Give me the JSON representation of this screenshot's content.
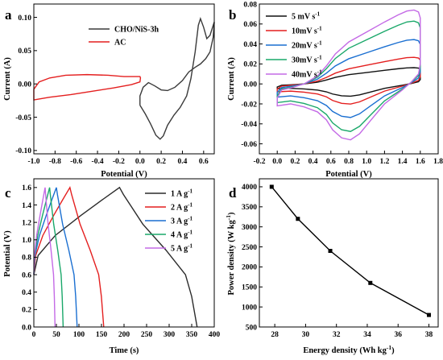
{
  "panels": {
    "a": {
      "label": "a"
    },
    "b": {
      "label": "b"
    },
    "c": {
      "label": "c"
    },
    "d": {
      "label": "d"
    }
  },
  "chart_data": [
    {
      "panel": "a",
      "type": "line",
      "xlabel": "Potential (V)",
      "ylabel": "Current (A)",
      "xlim": [
        -1.0,
        0.7
      ],
      "ylim": [
        -0.105,
        0.12
      ],
      "xticks": [
        -1.0,
        -0.8,
        -0.6,
        -0.4,
        -0.2,
        0.0,
        0.2,
        0.4,
        0.6
      ],
      "xtick_labels": [
        "-1.0",
        "-0.8",
        "-0.6",
        "-0.4",
        "-0.2",
        "0.0",
        "0.2",
        "0.4",
        "0.6"
      ],
      "yticks": [
        -0.1,
        -0.05,
        0.0,
        0.05,
        0.1
      ],
      "ytick_labels": [
        "-0.10",
        "-0.05",
        "0.00",
        "0.05",
        "0.10"
      ],
      "legend_position": "top-center",
      "series": [
        {
          "name": "CHO/NiS-3h",
          "color": "#3a3a3a",
          "points": [
            [
              0.0,
              -0.032
            ],
            [
              0.05,
              -0.045
            ],
            [
              0.1,
              -0.06
            ],
            [
              0.15,
              -0.077
            ],
            [
              0.19,
              -0.083
            ],
            [
              0.22,
              -0.078
            ],
            [
              0.26,
              -0.062
            ],
            [
              0.32,
              -0.047
            ],
            [
              0.38,
              -0.035
            ],
            [
              0.44,
              -0.018
            ],
            [
              0.48,
              0.008
            ],
            [
              0.52,
              0.048
            ],
            [
              0.55,
              0.088
            ],
            [
              0.57,
              0.098
            ],
            [
              0.6,
              0.085
            ],
            [
              0.63,
              0.068
            ],
            [
              0.66,
              0.073
            ],
            [
              0.68,
              0.083
            ],
            [
              0.7,
              0.093
            ],
            [
              0.69,
              0.07
            ],
            [
              0.66,
              0.048
            ],
            [
              0.62,
              0.038
            ],
            [
              0.57,
              0.03
            ],
            [
              0.52,
              0.025
            ],
            [
              0.46,
              0.018
            ],
            [
              0.4,
              0.005
            ],
            [
              0.33,
              -0.005
            ],
            [
              0.26,
              -0.01
            ],
            [
              0.2,
              -0.009
            ],
            [
              0.14,
              -0.003
            ],
            [
              0.08,
              0.002
            ],
            [
              0.03,
              -0.005
            ],
            [
              0.0,
              -0.018
            ],
            [
              0.0,
              -0.032
            ]
          ]
        },
        {
          "name": "AC",
          "color": "#e41f1f",
          "points": [
            [
              -1.0,
              -0.008
            ],
            [
              -0.95,
              0.003
            ],
            [
              -0.85,
              0.009
            ],
            [
              -0.7,
              0.013
            ],
            [
              -0.5,
              0.014
            ],
            [
              -0.3,
              0.013
            ],
            [
              -0.15,
              0.011
            ],
            [
              -0.05,
              0.011
            ],
            [
              0.0,
              0.011
            ],
            [
              0.005,
              0.009
            ],
            [
              0.0,
              0.003
            ],
            [
              -0.08,
              -0.001
            ],
            [
              -0.25,
              -0.006
            ],
            [
              -0.45,
              -0.011
            ],
            [
              -0.65,
              -0.016
            ],
            [
              -0.85,
              -0.02
            ],
            [
              -1.0,
              -0.024
            ],
            [
              -1.0,
              -0.008
            ]
          ]
        }
      ]
    },
    {
      "panel": "b",
      "type": "line",
      "xlabel": "Potential (V)",
      "ylabel": "Current (A)",
      "xlim": [
        -0.2,
        1.8
      ],
      "ylim": [
        -0.07,
        0.08
      ],
      "xticks": [
        -0.2,
        0.0,
        0.2,
        0.4,
        0.6,
        0.8,
        1.0,
        1.2,
        1.4,
        1.6,
        1.8
      ],
      "xtick_labels": [
        "-0.2",
        "0.0",
        "0.2",
        "0.4",
        "0.6",
        "0.8",
        "1.0",
        "1.2",
        "1.4",
        "1.6",
        "1.8"
      ],
      "yticks": [
        -0.06,
        -0.04,
        -0.02,
        0.0,
        0.02,
        0.04,
        0.06,
        0.08
      ],
      "ytick_labels": [
        "-0.06",
        "-0.04",
        "-0.02",
        "0.00",
        "0.02",
        "0.04",
        "0.06",
        "0.08"
      ],
      "legend_position": "top-left",
      "series": [
        {
          "name": "5  mV s",
          "unit_superscript": "-1",
          "color": "#111111",
          "scale": 0.22
        },
        {
          "name": "10mV s",
          "unit_superscript": "-1",
          "color": "#e41f1f",
          "scale": 0.36
        },
        {
          "name": "20mV s",
          "unit_superscript": "-1",
          "color": "#1a6fd1",
          "scale": 0.6
        },
        {
          "name": "30mV s",
          "unit_superscript": "-1",
          "color": "#1aa86a",
          "scale": 0.85
        },
        {
          "name": "40mV s",
          "unit_superscript": "-1",
          "color": "#c46ae6",
          "scale": 1.0
        }
      ],
      "base_loop_40mV": [
        [
          0.0,
          -0.014
        ],
        [
          0.05,
          -0.006
        ],
        [
          0.15,
          -0.004
        ],
        [
          0.3,
          0.0
        ],
        [
          0.45,
          0.008
        ],
        [
          0.55,
          0.018
        ],
        [
          0.65,
          0.03
        ],
        [
          0.8,
          0.042
        ],
        [
          1.0,
          0.052
        ],
        [
          1.2,
          0.062
        ],
        [
          1.35,
          0.069
        ],
        [
          1.45,
          0.073
        ],
        [
          1.53,
          0.074
        ],
        [
          1.58,
          0.072
        ],
        [
          1.6,
          0.066
        ],
        [
          1.6,
          0.02
        ],
        [
          1.58,
          0.01
        ],
        [
          1.5,
          0.002
        ],
        [
          1.4,
          -0.006
        ],
        [
          1.2,
          -0.02
        ],
        [
          1.05,
          -0.036
        ],
        [
          0.92,
          -0.05
        ],
        [
          0.82,
          -0.056
        ],
        [
          0.72,
          -0.054
        ],
        [
          0.62,
          -0.046
        ],
        [
          0.55,
          -0.036
        ],
        [
          0.45,
          -0.028
        ],
        [
          0.3,
          -0.023
        ],
        [
          0.15,
          -0.02
        ],
        [
          0.0,
          -0.022
        ],
        [
          0.0,
          -0.014
        ]
      ]
    },
    {
      "panel": "c",
      "type": "line",
      "xlabel": "Time (s)",
      "ylabel": "Potential (V)",
      "xlim": [
        0,
        400
      ],
      "ylim": [
        0,
        1.7
      ],
      "xticks": [
        0,
        50,
        100,
        150,
        200,
        250,
        300,
        350,
        400
      ],
      "xtick_labels": [
        "0",
        "50",
        "100",
        "150",
        "200",
        "250",
        "300",
        "350",
        "400"
      ],
      "yticks": [
        0.0,
        0.2,
        0.4,
        0.6,
        0.8,
        1.0,
        1.2,
        1.4,
        1.6
      ],
      "ytick_labels": [
        "0.0",
        "0.2",
        "0.4",
        "0.6",
        "0.8",
        "1.0",
        "1.2",
        "1.4",
        "1.6"
      ],
      "legend_position": "top-right",
      "series": [
        {
          "name": "1 A g",
          "unit_superscript": "-1",
          "color": "#2b2b2b",
          "t_peak": 190,
          "t_end": 362
        },
        {
          "name": "2 A g",
          "unit_superscript": "-1",
          "color": "#e41f1f",
          "t_peak": 80,
          "t_end": 155
        },
        {
          "name": "3 A g",
          "unit_superscript": "-1",
          "color": "#1a6fd1",
          "t_peak": 50,
          "t_end": 96
        },
        {
          "name": "4 A g",
          "unit_superscript": "-1",
          "color": "#1aa86a",
          "t_peak": 35,
          "t_end": 65
        },
        {
          "name": "5 A g",
          "unit_superscript": "-1",
          "color": "#c46ae6",
          "t_peak": 25,
          "t_end": 47
        }
      ],
      "start_potential": 0.6,
      "peak_potential": 1.6
    },
    {
      "panel": "d",
      "type": "line",
      "xlabel": "Energy density (Wh kg",
      "xlabel_superscript": "-1",
      "xlabel_suffix": ")",
      "ylabel": "Power density (W kg",
      "ylabel_superscript": "-1",
      "ylabel_suffix": ")",
      "xlim": [
        27,
        38.6
      ],
      "ylim": [
        500,
        4200
      ],
      "xticks": [
        28,
        30,
        32,
        34,
        36,
        38
      ],
      "xtick_labels": [
        "28",
        "30",
        "32",
        "34",
        "36",
        "38"
      ],
      "yticks": [
        500,
        1000,
        1500,
        2000,
        2500,
        3000,
        3500,
        4000
      ],
      "ytick_labels": [
        "500",
        "1000",
        "1500",
        "2000",
        "2500",
        "3000",
        "3500",
        "4000"
      ],
      "series": [
        {
          "color": "#000000",
          "points": [
            [
              27.8,
              4000
            ],
            [
              29.5,
              3200
            ],
            [
              31.6,
              2400
            ],
            [
              34.2,
              1600
            ],
            [
              38.0,
              800
            ]
          ]
        }
      ]
    }
  ]
}
